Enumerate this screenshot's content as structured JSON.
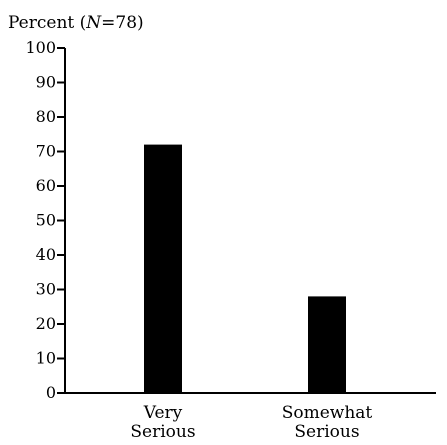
{
  "chart_data": {
    "type": "bar",
    "title": "Percent (N=78)",
    "title_parts": {
      "prefix": "Percent (",
      "n_symbol": "N",
      "suffix": "=78)"
    },
    "xlabel": "",
    "ylabel": "",
    "ylim": [
      0,
      100
    ],
    "yticks": [
      0,
      10,
      20,
      30,
      40,
      50,
      60,
      70,
      80,
      90,
      100
    ],
    "categories": [
      {
        "lines": [
          "Very",
          "Serious"
        ],
        "label": "Very Serious"
      },
      {
        "lines": [
          "Somewhat",
          "Serious"
        ],
        "label": "Somewhat Serious"
      }
    ],
    "values": [
      72,
      28
    ],
    "bar_color": "#000000",
    "grid": false,
    "legend": "none"
  }
}
